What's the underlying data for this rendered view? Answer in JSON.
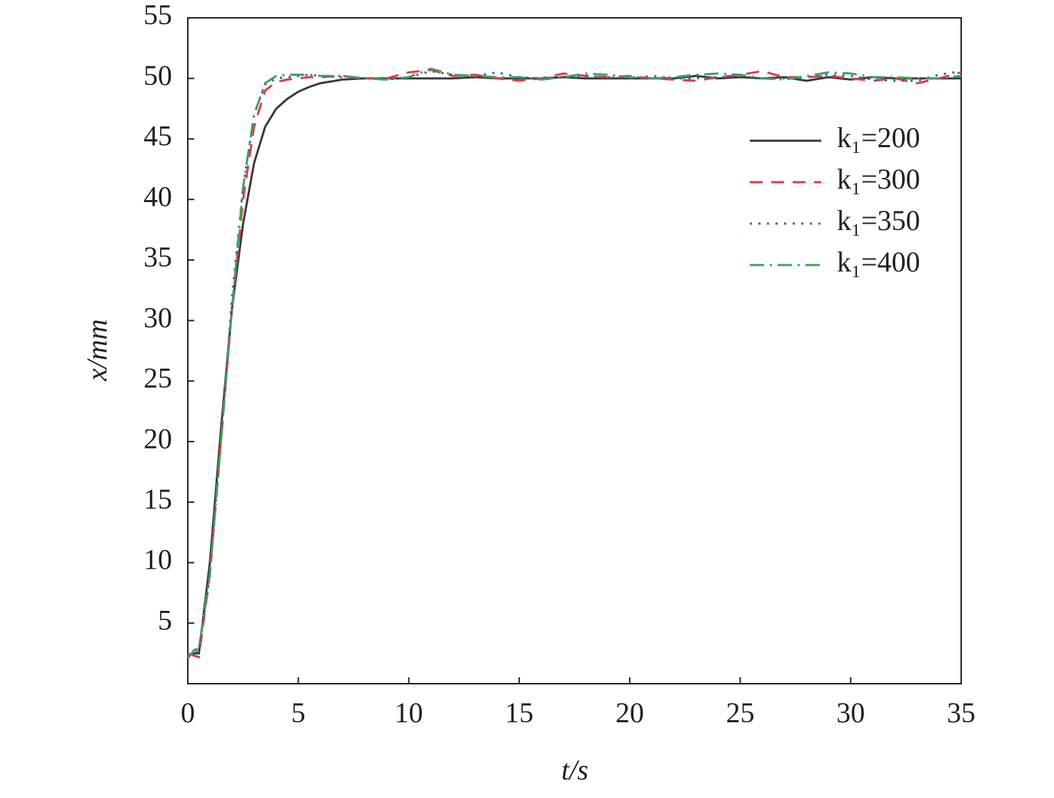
{
  "chart_data": {
    "type": "line",
    "xlabel": "t/s",
    "ylabel": "x/mm",
    "x": [
      0,
      0.3,
      0.5,
      1,
      1.5,
      2,
      2.5,
      3,
      3.5,
      4,
      4.5,
      5,
      5.5,
      6,
      7,
      8,
      9,
      10,
      11,
      12,
      13,
      14,
      15,
      16,
      17,
      18,
      19,
      20,
      21,
      22,
      23,
      24,
      25,
      26,
      27,
      28,
      29,
      30,
      31,
      32,
      33,
      34,
      35
    ],
    "series": [
      {
        "name": "k₁=200",
        "color": "#3a3a3a",
        "dash": "solid",
        "values": [
          2.3,
          2.5,
          2.5,
          10,
          21,
          31,
          38,
          43,
          46,
          47.5,
          48.3,
          48.9,
          49.3,
          49.6,
          49.9,
          50,
          50,
          50,
          50,
          50,
          50.1,
          50,
          50,
          50,
          50.1,
          50,
          50,
          50,
          50,
          50,
          50.2,
          50,
          50.1,
          50,
          50.1,
          49.8,
          50.1,
          49.9,
          50.1,
          50,
          50,
          50,
          50
        ]
      },
      {
        "name": "k₁=300",
        "color": "#e03a4a",
        "dash": "dashed",
        "values": [
          2.5,
          2.3,
          2.2,
          9,
          20,
          31,
          40,
          46,
          49,
          49.7,
          49.9,
          50,
          50.1,
          50.1,
          50.2,
          50,
          50,
          50.5,
          50.7,
          50.2,
          50.3,
          50,
          49.8,
          50,
          50.4,
          50.2,
          50.1,
          50.2,
          50,
          49.9,
          49.8,
          50.1,
          50.3,
          50.6,
          50.1,
          50.1,
          50.2,
          50,
          49.8,
          50,
          49.6,
          50,
          50.5
        ]
      },
      {
        "name": "k₁=350",
        "color": "#3b5fb5",
        "dash": "dotted",
        "values": [
          2.3,
          2.6,
          2.7,
          9,
          20,
          32,
          41,
          47,
          49.5,
          50,
          50.1,
          50.2,
          50.3,
          50.2,
          50.1,
          50,
          49.9,
          50.1,
          50.6,
          50.3,
          50.2,
          50.5,
          50.1,
          50,
          50.1,
          50.2,
          50.1,
          50,
          50.2,
          50,
          50,
          50.1,
          50.2,
          50,
          50,
          50.1,
          50.3,
          50.2,
          49.9,
          49.8,
          49.8,
          50.3,
          50.6
        ]
      },
      {
        "name": "k₁=400",
        "color": "#3fa05a",
        "dash": "dashdot",
        "values": [
          2.1,
          2.8,
          2.9,
          9,
          20,
          31,
          41,
          47,
          49.6,
          50.2,
          50.3,
          50.3,
          50.3,
          50.2,
          50.2,
          50,
          49.9,
          50.1,
          50.8,
          50.3,
          50.2,
          50.1,
          50.1,
          49.9,
          50.1,
          50.4,
          50.3,
          50.1,
          50,
          50.1,
          50.3,
          50.4,
          50.3,
          50,
          49.9,
          50.2,
          50.5,
          50.4,
          50.1,
          50.1,
          50,
          50,
          50.2
        ]
      }
    ],
    "xlim": [
      0,
      35
    ],
    "xticks": [
      0,
      5,
      10,
      15,
      20,
      25,
      30,
      35
    ],
    "ylim": [
      0,
      55
    ],
    "yticks": [
      5,
      10,
      15,
      20,
      25,
      30,
      35,
      40,
      45,
      50,
      55
    ],
    "legend": "upper right"
  }
}
